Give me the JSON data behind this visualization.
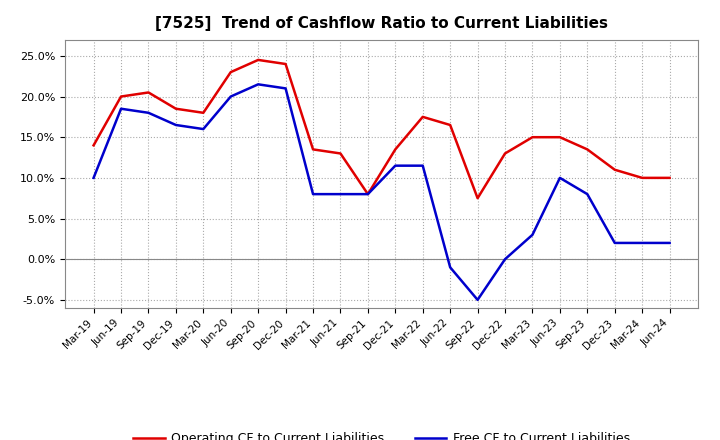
{
  "title": "[7525]  Trend of Cashflow Ratio to Current Liabilities",
  "x_labels": [
    "Mar-19",
    "Jun-19",
    "Sep-19",
    "Dec-19",
    "Mar-20",
    "Jun-20",
    "Sep-20",
    "Dec-20",
    "Mar-21",
    "Jun-21",
    "Sep-21",
    "Dec-21",
    "Mar-22",
    "Jun-22",
    "Sep-22",
    "Dec-22",
    "Mar-23",
    "Jun-23",
    "Sep-23",
    "Dec-23",
    "Mar-24",
    "Jun-24"
  ],
  "operating_cf": [
    0.14,
    0.2,
    0.205,
    0.185,
    0.18,
    0.23,
    0.245,
    0.24,
    0.135,
    0.13,
    0.08,
    0.135,
    0.175,
    0.165,
    0.075,
    0.13,
    0.15,
    0.15,
    0.135,
    0.11,
    0.1,
    0.1
  ],
  "free_cf": [
    0.1,
    0.185,
    0.18,
    0.165,
    0.16,
    0.2,
    0.215,
    0.21,
    0.08,
    0.08,
    0.08,
    0.115,
    0.115,
    -0.01,
    -0.05,
    0.0,
    0.03,
    0.1,
    0.08,
    0.02,
    0.02,
    0.02
  ],
  "operating_color": "#e00000",
  "free_color": "#0000cc",
  "ylim": [
    -0.06,
    0.27
  ],
  "yticks": [
    -0.05,
    0.0,
    0.05,
    0.1,
    0.15,
    0.2,
    0.25
  ],
  "background_color": "#ffffff",
  "grid_color": "#aaaaaa",
  "legend_operating": "Operating CF to Current Liabilities",
  "legend_free": "Free CF to Current Liabilities"
}
